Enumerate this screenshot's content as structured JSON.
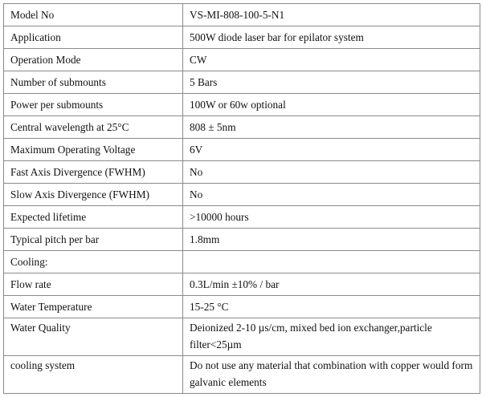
{
  "rows": [
    {
      "label": "Model No",
      "value": "VS-MI-808-100-5-N1"
    },
    {
      "label": "Application",
      "value": "500W diode laser bar for epilator system"
    },
    {
      "label": "Operation Mode",
      "value": "CW"
    },
    {
      "label": "Number of submounts",
      "value": "5 Bars"
    },
    {
      "label": "Power per submounts",
      "value": "100W or 60w optional"
    },
    {
      "label": "Central wavelength at 25°C",
      "value": "808 ± 5nm"
    },
    {
      "label": "Maximum Operating Voltage",
      "value": "6V"
    },
    {
      "label": "Fast Axis Divergence (FWHM)",
      "value": "No"
    },
    {
      "label": "Slow Axis Divergence (FWHM)",
      "value": "No"
    },
    {
      "label": "Expected lifetime",
      "value": ">10000 hours"
    },
    {
      "label": "Typical pitch per bar",
      "value": "1.8mm"
    },
    {
      "label": "Cooling:",
      "value": ""
    },
    {
      "label": "Flow rate",
      "value": "0.3L/min ±10% / bar"
    },
    {
      "label": "Water Temperature",
      "value": "15-25 °C"
    },
    {
      "label": "Water Quality",
      "value": "Deionized 2-10 µs/cm, mixed bed ion exchanger,particle filter<25µm"
    },
    {
      "label": "cooling system",
      "value": "Do not use any material that combination with copper would form galvanic elements"
    }
  ]
}
